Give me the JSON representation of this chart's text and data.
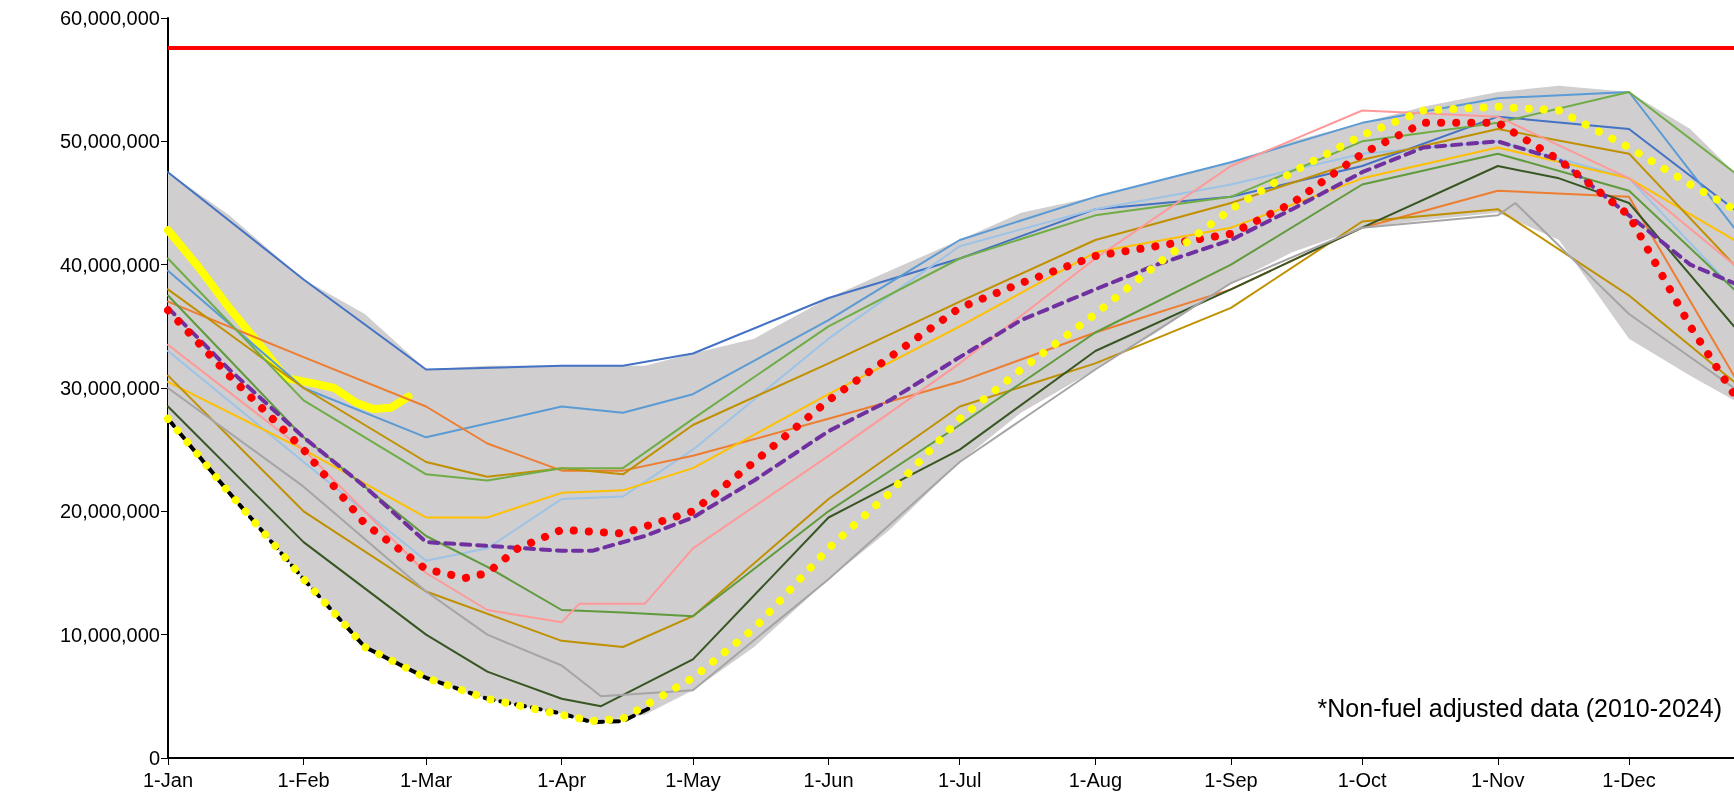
{
  "chart_data": {
    "type": "line",
    "marker": "none",
    "grid": false,
    "xlim": [
      "--01-01",
      "--12-25"
    ],
    "xticks": [
      {
        "value": "--01-01",
        "label": "1-Jan"
      },
      {
        "value": "--02-01",
        "label": "1-Feb"
      },
      {
        "value": "--03-01",
        "label": "1-Mar"
      },
      {
        "value": "--04-01",
        "label": "1-Apr"
      },
      {
        "value": "--05-01",
        "label": "1-May"
      },
      {
        "value": "--06-01",
        "label": "1-Jun"
      },
      {
        "value": "--07-01",
        "label": "1-Jul"
      },
      {
        "value": "--08-01",
        "label": "1-Aug"
      },
      {
        "value": "--09-01",
        "label": "1-Sep"
      },
      {
        "value": "--10-01",
        "label": "1-Oct"
      },
      {
        "value": "--11-01",
        "label": "1-Nov"
      },
      {
        "value": "--12-01",
        "label": "1-Dec"
      }
    ],
    "ylim": [
      0,
      60000000
    ],
    "yticks": [
      {
        "value": 0,
        "label": "0"
      },
      {
        "value": 10000000,
        "label": "10,000,000"
      },
      {
        "value": 20000000,
        "label": "20,000,000"
      },
      {
        "value": 30000000,
        "label": "30,000,000"
      },
      {
        "value": 40000000,
        "label": "40,000,000"
      },
      {
        "value": 50000000,
        "label": "50,000,000"
      },
      {
        "value": 60000000,
        "label": "60,000,000"
      }
    ],
    "ref_lines": [
      {
        "axis": "y",
        "value": 57600000,
        "color": "#ff0000",
        "line_style": "solid"
      }
    ],
    "annotations": [
      "*Non-fuel adjusted data (2010-2024)"
    ],
    "series": [
      {
        "color": "#ffff00",
        "line_style": "solid",
        "x": [
          "--01-01",
          "--01-08",
          "--01-15",
          "--01-22",
          "--01-28",
          "--02-03",
          "--02-08",
          "--02-13",
          "--02-17",
          "--02-21",
          "--02-25"
        ],
        "values": [
          42800000,
          39800000,
          36500000,
          33500000,
          30800000,
          30400000,
          30000000,
          28800000,
          28300000,
          28400000,
          29300000
        ]
      },
      {
        "color": "#000000",
        "line_style": "dashed",
        "x": [
          "--01-01",
          "--01-15",
          "--02-01",
          "--02-15",
          "--03-01",
          "--03-15",
          "--04-01",
          "--04-08",
          "--04-15",
          "--04-22"
        ],
        "values": [
          27500000,
          21500000,
          14500000,
          9000000,
          6500000,
          4800000,
          3600000,
          2900000,
          3000000,
          4200000
        ]
      },
      {
        "color": "#4472c4",
        "line_style": "solid",
        "x": [
          "--01-01",
          "--02-01",
          "--03-01",
          "--04-01",
          "--04-15",
          "--05-01",
          "--06-01",
          "--07-01",
          "--08-01",
          "--09-01",
          "--10-01",
          "--11-01",
          "--12-01",
          "--12-25"
        ],
        "values": [
          47500000,
          38800000,
          31500000,
          31800000,
          31800000,
          32800000,
          37300000,
          40500000,
          44500000,
          45500000,
          48000000,
          52000000,
          51000000,
          44500000
        ]
      },
      {
        "color": "#5b9bd5",
        "line_style": "solid",
        "x": [
          "--01-01",
          "--02-01",
          "--03-01",
          "--04-01",
          "--04-15",
          "--05-01",
          "--06-01",
          "--07-01",
          "--08-01",
          "--09-01",
          "--10-01",
          "--11-01",
          "--12-01",
          "--12-25"
        ],
        "values": [
          39500000,
          30000000,
          26000000,
          28500000,
          28000000,
          29500000,
          35500000,
          42000000,
          45500000,
          48300000,
          51500000,
          53500000,
          54000000,
          43000000
        ]
      },
      {
        "color": "#9dc3e6",
        "line_style": "solid",
        "x": [
          "--01-01",
          "--02-01",
          "--03-01",
          "--03-15",
          "--04-01",
          "--04-15",
          "--05-01",
          "--06-01",
          "--07-01",
          "--08-01",
          "--09-01",
          "--10-01",
          "--11-01",
          "--12-01",
          "--12-25"
        ],
        "values": [
          33000000,
          24000000,
          16000000,
          17000000,
          21000000,
          21200000,
          25000000,
          34000000,
          41500000,
          44500000,
          46500000,
          49000000,
          50000000,
          47000000,
          38000000
        ]
      },
      {
        "color": "#ed7d31",
        "line_style": "solid",
        "x": [
          "--01-01",
          "--02-01",
          "--03-01",
          "--03-15",
          "--04-01",
          "--04-15",
          "--05-01",
          "--06-01",
          "--07-01",
          "--08-01",
          "--09-01",
          "--10-01",
          "--11-01",
          "--12-01",
          "--12-25"
        ],
        "values": [
          37000000,
          32500000,
          28500000,
          25500000,
          23300000,
          23300000,
          24500000,
          27500000,
          30500000,
          34500000,
          38000000,
          43000000,
          46000000,
          45500000,
          31000000
        ]
      },
      {
        "color": "#ffc000",
        "line_style": "solid",
        "x": [
          "--01-01",
          "--02-01",
          "--03-01",
          "--03-15",
          "--04-01",
          "--04-15",
          "--05-01",
          "--06-01",
          "--07-01",
          "--08-01",
          "--09-01",
          "--10-01",
          "--11-01",
          "--12-01",
          "--12-25"
        ],
        "values": [
          30500000,
          25000000,
          19500000,
          19500000,
          21500000,
          21700000,
          23500000,
          29500000,
          35000000,
          41000000,
          43000000,
          47000000,
          49500000,
          47000000,
          42000000
        ]
      },
      {
        "color": "#bf9000",
        "line_style": "solid",
        "x": [
          "--01-01",
          "--02-01",
          "--03-01",
          "--04-01",
          "--04-15",
          "--05-01",
          "--06-01",
          "--07-01",
          "--08-01",
          "--09-01",
          "--10-01",
          "--11-01",
          "--12-01",
          "--12-25"
        ],
        "values": [
          31000000,
          20000000,
          13500000,
          9500000,
          9000000,
          11500000,
          21000000,
          28500000,
          32000000,
          36500000,
          43500000,
          44500000,
          37500000,
          30500000
        ]
      },
      {
        "color": "#c09000",
        "line_style": "solid",
        "x": [
          "--01-01",
          "--02-01",
          "--03-01",
          "--03-15",
          "--04-01",
          "--04-15",
          "--05-01",
          "--06-01",
          "--07-01",
          "--08-01",
          "--09-01",
          "--10-01",
          "--11-01",
          "--12-01",
          "--12-25"
        ],
        "values": [
          38000000,
          30000000,
          24000000,
          22800000,
          23500000,
          23000000,
          27000000,
          32000000,
          37000000,
          42000000,
          45000000,
          48500000,
          51000000,
          49000000,
          40000000
        ]
      },
      {
        "color": "#70ad47",
        "line_style": "solid",
        "x": [
          "--01-01",
          "--02-01",
          "--03-01",
          "--03-15",
          "--04-01",
          "--04-15",
          "--05-01",
          "--06-01",
          "--07-01",
          "--08-01",
          "--09-01",
          "--10-01",
          "--11-01",
          "--12-01",
          "--12-25"
        ],
        "values": [
          40500000,
          29000000,
          23000000,
          22500000,
          23500000,
          23500000,
          27500000,
          35000000,
          40500000,
          44000000,
          45500000,
          50000000,
          51500000,
          54000000,
          47500000
        ]
      },
      {
        "color": "#5f9a3c",
        "line_style": "solid",
        "x": [
          "--01-01",
          "--02-01",
          "--03-01",
          "--03-15",
          "--04-01",
          "--04-15",
          "--05-01",
          "--06-01",
          "--07-01",
          "--08-01",
          "--09-01",
          "--10-01",
          "--11-01",
          "--12-01",
          "--12-25"
        ],
        "values": [
          37500000,
          26000000,
          18000000,
          15500000,
          12000000,
          11800000,
          11500000,
          20000000,
          27000000,
          34500000,
          40000000,
          46500000,
          49000000,
          46000000,
          38000000
        ]
      },
      {
        "color": "#375623",
        "line_style": "solid",
        "x": [
          "--01-01",
          "--02-01",
          "--03-01",
          "--03-15",
          "--04-01",
          "--04-10",
          "--05-01",
          "--06-01",
          "--07-01",
          "--08-01",
          "--09-01",
          "--10-01",
          "--11-01",
          "--11-15",
          "--12-01",
          "--12-25"
        ],
        "values": [
          28500000,
          17500000,
          10000000,
          7000000,
          4800000,
          4200000,
          8000000,
          19500000,
          25000000,
          33000000,
          38000000,
          43000000,
          48000000,
          47000000,
          45000000,
          35000000
        ]
      },
      {
        "color": "#ff9999",
        "line_style": "solid",
        "x": [
          "--01-01",
          "--02-01",
          "--03-01",
          "--03-15",
          "--04-01",
          "--04-05",
          "--04-20",
          "--05-01",
          "--06-01",
          "--07-01",
          "--08-01",
          "--09-01",
          "--10-01",
          "--11-01",
          "--12-01",
          "--12-25"
        ],
        "values": [
          33500000,
          25000000,
          15000000,
          12000000,
          11000000,
          12500000,
          12500000,
          17000000,
          24500000,
          32000000,
          40500000,
          48000000,
          52500000,
          52000000,
          47000000,
          40000000
        ]
      },
      {
        "color": "#a5a5a5",
        "line_style": "solid",
        "x": [
          "--01-01",
          "--02-01",
          "--03-01",
          "--03-15",
          "--04-01",
          "--04-10",
          "--05-01",
          "--06-01",
          "--07-01",
          "--08-01",
          "--09-01",
          "--10-01",
          "--11-01",
          "--11-05",
          "--12-01",
          "--12-25"
        ],
        "values": [
          30000000,
          22000000,
          13500000,
          10000000,
          7500000,
          5000000,
          5500000,
          14500000,
          24000000,
          31500000,
          38500000,
          43000000,
          44000000,
          45000000,
          36000000,
          30000000
        ]
      },
      {
        "color": "#7030a0",
        "line_style": "dashed",
        "x": [
          "--01-01",
          "--01-15",
          "--02-01",
          "--02-15",
          "--03-01",
          "--03-15",
          "--04-01",
          "--04-08",
          "--04-20",
          "--05-01",
          "--05-15",
          "--06-01",
          "--06-15",
          "--07-01",
          "--07-15",
          "--08-01",
          "--08-15",
          "--09-01",
          "--09-15",
          "--10-01",
          "--10-15",
          "--11-01",
          "--11-15",
          "--12-01",
          "--12-15",
          "--12-25"
        ],
        "values": [
          36500000,
          31500000,
          26000000,
          22000000,
          17500000,
          17200000,
          16800000,
          16800000,
          18000000,
          19500000,
          22500000,
          26500000,
          29000000,
          32500000,
          35500000,
          38000000,
          40000000,
          42000000,
          44500000,
          47500000,
          49500000,
          50000000,
          48500000,
          44000000,
          40000000,
          38500000
        ],
        "upper": [
          47500000,
          44000000,
          38800000,
          36000000,
          31500000,
          31800000,
          31800000,
          31800000,
          31800000,
          32800000,
          34000000,
          37300000,
          39500000,
          42000000,
          44200000,
          45500000,
          46800000,
          48300000,
          50000000,
          51500000,
          52800000,
          54000000,
          54500000,
          54000000,
          51000000,
          47500000
        ],
        "lower": [
          27500000,
          21500000,
          14500000,
          9000000,
          6500000,
          4800000,
          3600000,
          2900000,
          3500000,
          5500000,
          9000000,
          14500000,
          18500000,
          24000000,
          28000000,
          31500000,
          34500000,
          38500000,
          41000000,
          43000000,
          43600000,
          44200000,
          42000000,
          34000000,
          31000000,
          29000000
        ]
      },
      {
        "color": "#ff0000",
        "line_style": "dotted",
        "x": [
          "--01-01",
          "--01-15",
          "--02-01",
          "--02-15",
          "--03-01",
          "--03-10",
          "--03-15",
          "--03-22",
          "--04-01",
          "--04-15",
          "--05-01",
          "--05-15",
          "--06-01",
          "--06-15",
          "--07-01",
          "--07-15",
          "--08-01",
          "--08-15",
          "--09-01",
          "--09-15",
          "--10-01",
          "--10-15",
          "--11-01",
          "--11-15",
          "--12-01",
          "--12-15",
          "--12-25"
        ],
        "values": [
          36300000,
          31000000,
          25000000,
          19000000,
          15300000,
          14600000,
          15000000,
          17000000,
          18500000,
          18200000,
          20000000,
          24000000,
          29000000,
          32500000,
          36500000,
          38500000,
          40700000,
          41500000,
          42500000,
          45000000,
          49000000,
          51500000,
          51500000,
          48500000,
          44000000,
          35000000,
          29500000
        ]
      },
      {
        "color": "#ffff00",
        "line_style": "dotted",
        "x": [
          "--01-01",
          "--01-15",
          "--02-01",
          "--02-15",
          "--03-01",
          "--03-15",
          "--04-01",
          "--04-08",
          "--04-15",
          "--05-01",
          "--05-15",
          "--06-01",
          "--06-15",
          "--07-01",
          "--07-15",
          "--08-01",
          "--08-15",
          "--09-01",
          "--09-15",
          "--10-01",
          "--10-15",
          "--11-01",
          "--11-15",
          "--12-01",
          "--12-15",
          "--12-25"
        ],
        "values": [
          27500000,
          21500000,
          14500000,
          9000000,
          6500000,
          4800000,
          3500000,
          3000000,
          3200000,
          6500000,
          10500000,
          17000000,
          21500000,
          27500000,
          31500000,
          36000000,
          40000000,
          44500000,
          47500000,
          50500000,
          52500000,
          52800000,
          52500000,
          49500000,
          46500000,
          44500000
        ]
      }
    ]
  }
}
